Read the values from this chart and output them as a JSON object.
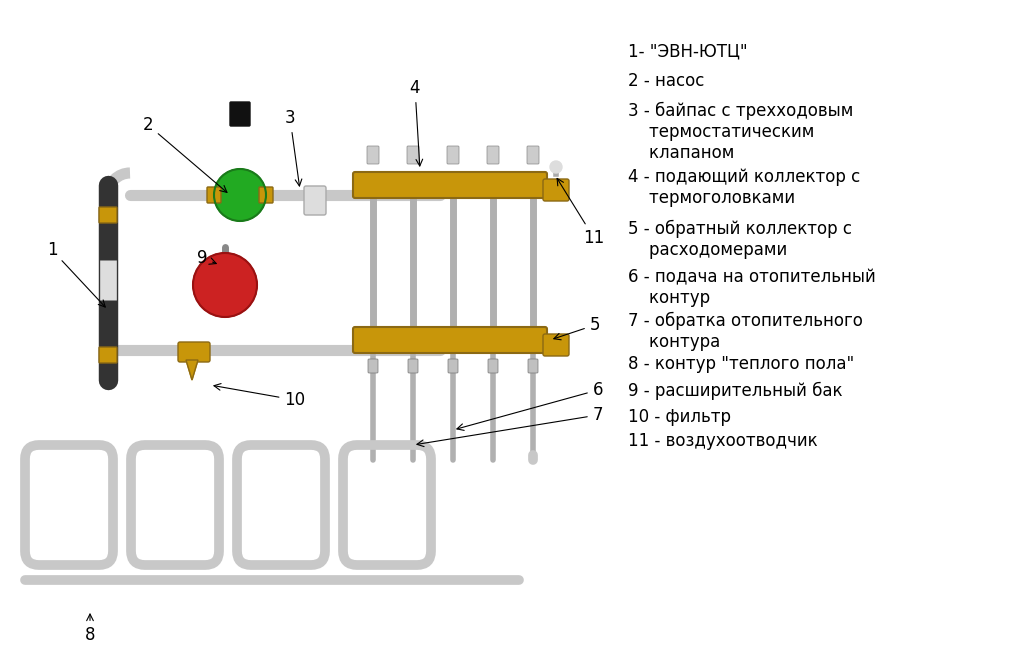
{
  "bg_color": "#ffffff",
  "pipe_color": "#c8c8c8",
  "pipe_color2": "#b0b0b0",
  "brass_color": "#c8960a",
  "brass_dark": "#8B6914",
  "green_color": "#22aa22",
  "red_color": "#cc2222",
  "black_color": "#222222",
  "white_color": "#e8e8e8",
  "pipe_lw": 8,
  "pipe_lw2": 5,
  "label_fontsize": 12,
  "legend_fontsize": 12,
  "legend_texts": [
    "1- \"ЭВН-ЮТЦ\"",
    "2 - насос",
    "3 - байпас с трехходовым\n    термостатическим\n    клапаном",
    "4 - подающий коллектор с\n    термоголовками",
    "5 - обратный коллектор с\n    расходомерами",
    "6 - подача на отопительный\n    контур",
    "7 - обратка отопительного\n    контура",
    "8 - контур \"теплого пола\"",
    "9 - расширительный бак",
    "10 - фильтр",
    "11 - воздухоотводчик"
  ]
}
